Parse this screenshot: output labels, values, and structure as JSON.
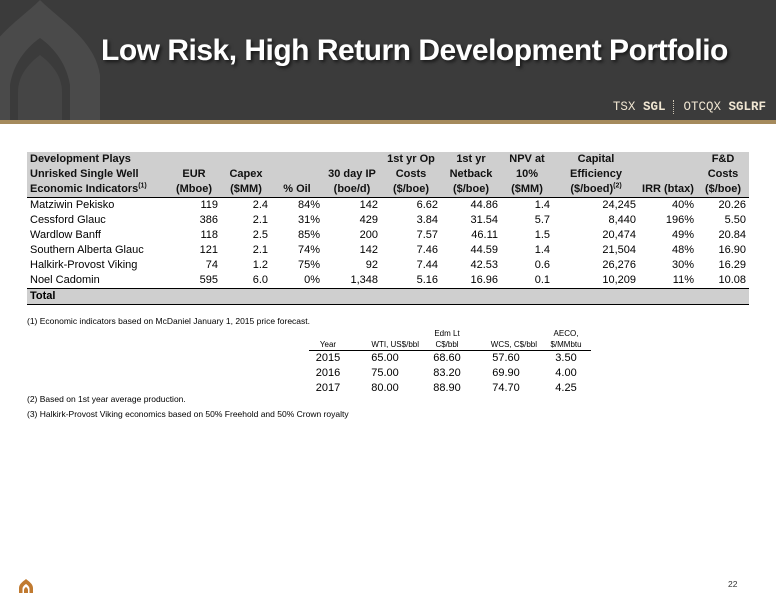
{
  "title": "Low Risk, High Return Development Portfolio",
  "ticker": {
    "tsx_label": "TSX",
    "tsx_symbol": "SGL",
    "otcqx_label": "OTCQX",
    "otcqx_symbol": "SGLRF"
  },
  "table": {
    "header": {
      "row1": {
        "c0": "Development Plays",
        "c5": "1st yr Op",
        "c6": "1st yr",
        "c7": "NPV at",
        "c8": "Capital",
        "c10": "F&D"
      },
      "row2": {
        "c0": "Unrisked Single Well",
        "c1": "EUR",
        "c2": "Capex",
        "c4": "30 day  IP",
        "c5": "Costs",
        "c6": "Netback",
        "c7": "10%",
        "c8": "Efficiency",
        "c10": "Costs"
      },
      "row3": {
        "c0": "Economic Indicators",
        "c0_sup": "(1)",
        "c1": "(Mboe)",
        "c2": "($MM)",
        "c3": "% Oil",
        "c4": "(boe/d)",
        "c5": "($/boe)",
        "c6": "($/boe)",
        "c7": "($MM)",
        "c8": "($/boed)",
        "c8_sup": "(2)",
        "c9": "IRR (btax)",
        "c10": "($/boe)"
      }
    },
    "rows": [
      [
        "Matziwin Pekisko",
        "119",
        "2.4",
        "84%",
        "142",
        "6.62",
        "44.86",
        "1.4",
        "24,245",
        "40%",
        "20.26"
      ],
      [
        "Cessford Glauc",
        "386",
        "2.1",
        "31%",
        "429",
        "3.84",
        "31.54",
        "5.7",
        "8,440",
        "196%",
        "5.50"
      ],
      [
        "Wardlow Banff",
        "118",
        "2.5",
        "85%",
        "200",
        "7.57",
        "46.11",
        "1.5",
        "20,474",
        "49%",
        "20.84"
      ],
      [
        "Southern Alberta Glauc",
        "121",
        "2.1",
        "74%",
        "142",
        "7.46",
        "44.59",
        "1.4",
        "21,504",
        "48%",
        "16.90"
      ],
      [
        "Halkirk-Provost Viking",
        "74",
        "1.2",
        "75%",
        "92",
        "7.44",
        "42.53",
        "0.6",
        "26,276",
        "30%",
        "16.29"
      ],
      [
        "Noel Cadomin",
        "595",
        "6.0",
        "0%",
        "1,348",
        "5.16",
        "16.96",
        "0.1",
        "10,209",
        "11%",
        "10.08"
      ]
    ],
    "total_label": "Total"
  },
  "notes": {
    "n1": "(1) Economic indicators based on McDaniel January 1, 2015 price forecast.",
    "n2": "(2) Based on 1st year average production.",
    "n3": "(3)  Halkirk-Provost Viking economics based on 50% Freehold and 50% Crown royalty"
  },
  "price_table": {
    "headers": {
      "year": "Year",
      "wti": "WTI, US$/bbl",
      "edm_line1": "Edm Lt",
      "edm_line2": "C$/bbl",
      "wcs": "WCS, C$/bbl",
      "aeco_line1": "AECO,",
      "aeco_line2": "$/MMbtu"
    },
    "rows": [
      [
        "2015",
        "65.00",
        "68.60",
        "57.60",
        "3.50"
      ],
      [
        "2016",
        "75.00",
        "83.20",
        "69.90",
        "4.00"
      ],
      [
        "2017",
        "80.00",
        "88.90",
        "74.70",
        "4.25"
      ]
    ]
  },
  "page_number": "22",
  "colors": {
    "header_bg": "#3b3b3b",
    "accent": "#a58a5c",
    "table_header_bg": "#cfcfcf",
    "footer_icon": "#c07a30"
  },
  "icons": {
    "header_logo": "company-logo-watermark",
    "footer_logo": "company-logo-small"
  }
}
